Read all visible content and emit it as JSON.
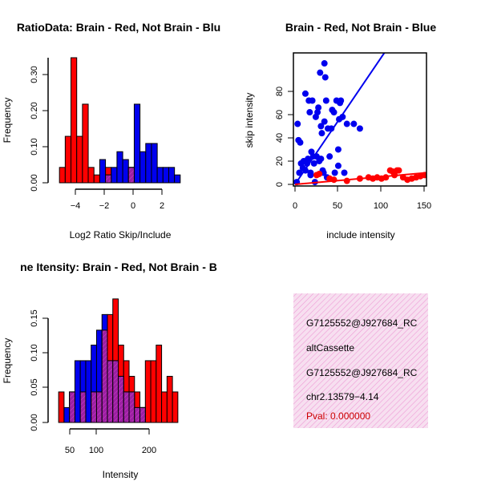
{
  "colors": {
    "red": "#ff0000",
    "blue": "#0000ee",
    "overlap": "#9c1fa3",
    "panel": "#f7dff0",
    "hatch": "#ee9bd6",
    "pval": "#cc0000"
  },
  "chart_data": [
    {
      "type": "bar",
      "title": "RatioData: Brain - Red, Not Brain - Blu",
      "xlabel": "Log2 Ratio Skip/Include",
      "ylabel": "Frequency",
      "xlim": [
        -5.6,
        3.6
      ],
      "ylim": [
        0,
        0.35
      ],
      "xticks": [
        -4,
        -2,
        0,
        2
      ],
      "xtick_labels": [
        "−4",
        "−2",
        "0",
        "2"
      ],
      "yticks": [
        0.0,
        0.1,
        0.2,
        0.3
      ],
      "ytick_labels": [
        "0.00",
        "0.10",
        "0.20",
        "0.30"
      ],
      "bin_width": 0.4,
      "series": [
        {
          "name": "Brain",
          "color": "red",
          "bins": [
            [
              -5.2,
              0.043
            ],
            [
              -4.8,
              0.13
            ],
            [
              -4.4,
              0.35
            ],
            [
              -4.0,
              0.13
            ],
            [
              -3.6,
              0.22
            ],
            [
              -3.2,
              0.043
            ],
            [
              -2.8,
              0.022
            ],
            [
              -2.0,
              0.043
            ],
            [
              -0.4,
              0.043
            ]
          ]
        },
        {
          "name": "Not Brain",
          "color": "blue",
          "bins": [
            [
              -2.4,
              0.065
            ],
            [
              -2.0,
              0.022
            ],
            [
              -1.6,
              0.043
            ],
            [
              -1.2,
              0.087
            ],
            [
              -0.8,
              0.065
            ],
            [
              -0.4,
              0.043
            ],
            [
              0.0,
              0.22
            ],
            [
              0.4,
              0.087
            ],
            [
              0.8,
              0.11
            ],
            [
              1.2,
              0.11
            ],
            [
              1.6,
              0.043
            ],
            [
              2.0,
              0.043
            ],
            [
              2.4,
              0.043
            ],
            [
              2.8,
              0.022
            ]
          ]
        }
      ]
    },
    {
      "type": "scatter",
      "title": "Brain - Red, Not Brain - Blue",
      "xlabel": "include intensity",
      "ylabel": "skip intensity",
      "xlim": [
        0,
        152
      ],
      "ylim": [
        0,
        113
      ],
      "xticks": [
        0,
        50,
        100,
        150
      ],
      "yticks": [
        0,
        20,
        40,
        60,
        80
      ],
      "series": [
        {
          "name": "Not Brain",
          "color": "blue",
          "points": [
            [
              2,
              2
            ],
            [
              3,
              52
            ],
            [
              4,
              38
            ],
            [
              5,
              10
            ],
            [
              6,
              36
            ],
            [
              7,
              18
            ],
            [
              9,
              14
            ],
            [
              10,
              20
            ],
            [
              12,
              78
            ],
            [
              12,
              12
            ],
            [
              14,
              18
            ],
            [
              15,
              22
            ],
            [
              16,
              72
            ],
            [
              17,
              62
            ],
            [
              18,
              10
            ],
            [
              18,
              8
            ],
            [
              19,
              28
            ],
            [
              20,
              72
            ],
            [
              21,
              24
            ],
            [
              22,
              18
            ],
            [
              23,
              2
            ],
            [
              24,
              58
            ],
            [
              25,
              24
            ],
            [
              26,
              62
            ],
            [
              27,
              66
            ],
            [
              28,
              20
            ],
            [
              29,
              96
            ],
            [
              30,
              50
            ],
            [
              30,
              22
            ],
            [
              31,
              44
            ],
            [
              32,
              12
            ],
            [
              33,
              10
            ],
            [
              34,
              54
            ],
            [
              34,
              104
            ],
            [
              35,
              92
            ],
            [
              36,
              72
            ],
            [
              37,
              6
            ],
            [
              38,
              48
            ],
            [
              40,
              24
            ],
            [
              42,
              48
            ],
            [
              43,
              64
            ],
            [
              45,
              62
            ],
            [
              46,
              10
            ],
            [
              48,
              72
            ],
            [
              50,
              30
            ],
            [
              50,
              16
            ],
            [
              51,
              56
            ],
            [
              52,
              70
            ],
            [
              53,
              72
            ],
            [
              55,
              58
            ],
            [
              57,
              10
            ],
            [
              60,
              52
            ],
            [
              68,
              52
            ],
            [
              75,
              48
            ]
          ],
          "fit": [
            [
              0,
              0
            ],
            [
              106,
              116
            ]
          ]
        },
        {
          "name": "Brain",
          "color": "red",
          "points": [
            [
              25,
              8
            ],
            [
              28,
              9
            ],
            [
              40,
              5
            ],
            [
              45,
              4
            ],
            [
              60,
              3
            ],
            [
              75,
              5
            ],
            [
              85,
              6
            ],
            [
              90,
              5
            ],
            [
              95,
              6
            ],
            [
              100,
              5
            ],
            [
              105,
              6
            ],
            [
              110,
              12
            ],
            [
              113,
              11
            ],
            [
              115,
              8
            ],
            [
              118,
              12
            ],
            [
              120,
              12
            ],
            [
              125,
              6
            ],
            [
              130,
              4
            ],
            [
              135,
              5
            ],
            [
              140,
              6
            ],
            [
              145,
              7
            ],
            [
              150,
              8
            ]
          ],
          "fit": [
            [
              0,
              0
            ],
            [
              152,
              10
            ]
          ]
        }
      ]
    },
    {
      "type": "bar",
      "title": "ne Itensity: Brain - Red, Not Brain - B",
      "xlabel": "Intensity",
      "ylabel": "Frequency",
      "xlim": [
        15,
        265
      ],
      "ylim": [
        0,
        0.175
      ],
      "xticks": [
        50,
        100,
        200
      ],
      "yticks": [
        0.0,
        0.05,
        0.1,
        0.15
      ],
      "ytick_labels": [
        "0.00",
        "0.05",
        "0.10",
        "0.15"
      ],
      "bin_width": 10,
      "series": [
        {
          "name": "Brain",
          "color": "red",
          "bins": [
            [
              30,
              0.043
            ],
            [
              50,
              0.043
            ],
            [
              70,
              0.043
            ],
            [
              90,
              0.043
            ],
            [
              100,
              0.043
            ],
            [
              110,
              0.13
            ],
            [
              120,
              0.152
            ],
            [
              130,
              0.174
            ],
            [
              140,
              0.109
            ],
            [
              150,
              0.087
            ],
            [
              160,
              0.065
            ],
            [
              170,
              0.043
            ],
            [
              180,
              0.021
            ],
            [
              190,
              0.087
            ],
            [
              200,
              0.087
            ],
            [
              210,
              0.109
            ],
            [
              220,
              0.043
            ],
            [
              230,
              0.065
            ],
            [
              240,
              0.043
            ]
          ]
        },
        {
          "name": "Not Brain",
          "color": "blue",
          "bins": [
            [
              40,
              0.021
            ],
            [
              50,
              0.043
            ],
            [
              60,
              0.087
            ],
            [
              70,
              0.087
            ],
            [
              80,
              0.087
            ],
            [
              90,
              0.109
            ],
            [
              100,
              0.13
            ],
            [
              110,
              0.152
            ],
            [
              120,
              0.087
            ],
            [
              130,
              0.087
            ],
            [
              140,
              0.065
            ],
            [
              150,
              0.043
            ],
            [
              160,
              0.043
            ],
            [
              170,
              0.021
            ],
            [
              180,
              0.021
            ]
          ]
        }
      ]
    }
  ],
  "info_panel": {
    "line1": "G7125552@J927684_RC",
    "line2": "altCassette",
    "line3": "G7125552@J927684_RC",
    "line4": "chr2.13579−4.14",
    "pval": "Pval: 0.000000"
  }
}
